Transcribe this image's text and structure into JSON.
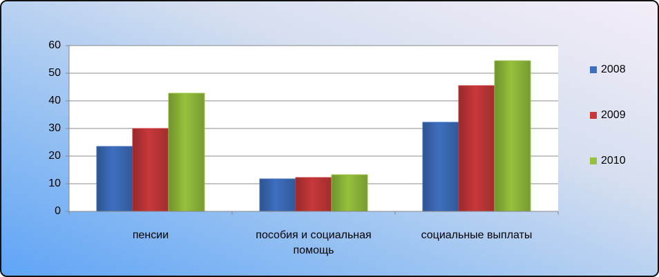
{
  "chart_data": {
    "type": "bar",
    "categories": [
      "пенсии",
      "пособия и социальная помощь",
      "социальные выплаты"
    ],
    "series": [
      {
        "name": "2008",
        "color": "#3e6fbf",
        "values": [
          23.5,
          11.75,
          32.25
        ]
      },
      {
        "name": "2009",
        "color": "#c8383a",
        "values": [
          30,
          12.25,
          45.5
        ]
      },
      {
        "name": "2010",
        "color": "#96c13c",
        "values": [
          42.75,
          13.25,
          54.5
        ]
      }
    ],
    "ylim": [
      0,
      60
    ],
    "yticks": [
      0,
      10,
      20,
      30,
      40,
      50,
      60
    ],
    "grid": true,
    "legend": "right"
  }
}
